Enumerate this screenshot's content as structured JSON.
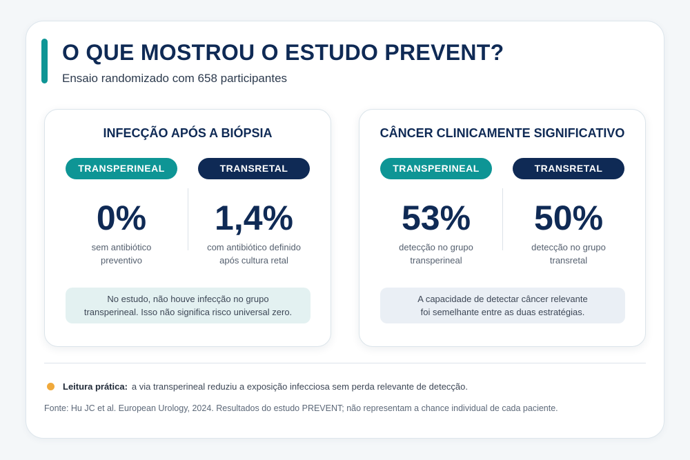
{
  "header": {
    "title": "O QUE MOSTROU O ESTUDO PREVENT?",
    "subtitle": "Ensaio randomizado com 658 participantes"
  },
  "colors": {
    "accent": "#0e9595",
    "navy": "#0f2a55",
    "highlight": "#f0a93b"
  },
  "cards": [
    {
      "title": "INFECÇÃO APÓS A BIÓPSIA",
      "columns": [
        {
          "tag": "TRANSPERINEAL",
          "value": "0%",
          "desc_line1": "sem antibiótico",
          "desc_line2": "preventivo"
        },
        {
          "tag": "TRANSRETAL",
          "value": "1,4%",
          "desc_line1": "com antibiótico definido",
          "desc_line2": "após cultura retal"
        }
      ],
      "note_line1": "No estudo, não houve infecção no grupo",
      "note_line2": "transperineal. Isso não significa risco universal zero."
    },
    {
      "title": "CÂNCER CLINICAMENTE SIGNIFICATIVO",
      "columns": [
        {
          "tag": "TRANSPERINEAL",
          "value": "53%",
          "desc_line1": "detecção no grupo",
          "desc_line2": "transperineal"
        },
        {
          "tag": "TRANSRETAL",
          "value": "50%",
          "desc_line1": "detecção no grupo",
          "desc_line2": "transretal"
        }
      ],
      "note_line1": "A capacidade de detectar câncer relevante",
      "note_line2": "foi semelhante entre as duas estratégias."
    }
  ],
  "footer": {
    "takeaway_label": "Leitura prática:",
    "takeaway_text": "a via transperineal reduziu a exposição infecciosa sem perda relevante de detecção.",
    "source": "Fonte: Hu JC et al. European Urology, 2024. Resultados do estudo PREVENT; não representam a chance individual de cada paciente."
  }
}
